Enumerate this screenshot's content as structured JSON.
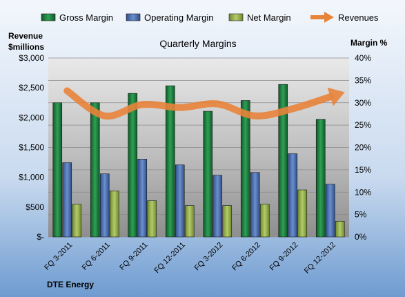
{
  "chart_data": {
    "type": "bar",
    "title": "Quarterly Margins",
    "company": "DTE Energy",
    "categories": [
      "FQ 3-2011",
      "FQ 6-2011",
      "FQ 9-2011",
      "FQ 12-2011",
      "FQ 3-2012",
      "FQ 6-2012",
      "FQ 9-2012",
      "FQ 12-2012"
    ],
    "y_left": {
      "label_line1": "Revenue",
      "label_line2": "$millions",
      "min": 0,
      "max": 3000,
      "step": 500,
      "tick_labels": [
        "$-",
        "$500",
        "$1,000",
        "$1,500",
        "$2,000",
        "$2,500",
        "$3,000"
      ]
    },
    "y_right": {
      "label": "Margin %",
      "min": 0,
      "max": 40,
      "step": 5,
      "tick_labels": [
        "0%",
        "5%",
        "10%",
        "15%",
        "20%",
        "25%",
        "30%",
        "35%",
        "40%"
      ]
    },
    "series": [
      {
        "name": "Gross Margin",
        "axis": "right",
        "color": "#1e7a3c",
        "values": [
          30.0,
          30.0,
          32.1,
          33.8,
          28.1,
          30.5,
          34.1,
          26.3
        ]
      },
      {
        "name": "Operating Margin",
        "axis": "right",
        "color": "#4a6fae",
        "values": [
          16.6,
          14.1,
          17.4,
          16.1,
          13.8,
          14.4,
          18.6,
          11.8
        ]
      },
      {
        "name": "Net Margin",
        "axis": "right",
        "color": "#93ad4a",
        "values": [
          7.3,
          10.3,
          8.1,
          7.0,
          7.0,
          7.3,
          10.5,
          3.5
        ]
      },
      {
        "name": "Revenues",
        "axis": "left",
        "type": "line",
        "color": "#e8833a",
        "values": [
          2450,
          2030,
          2220,
          2170,
          2230,
          2030,
          2150,
          2350
        ]
      }
    ],
    "legend": [
      "Gross Margin",
      "Operating Margin",
      "Net Margin",
      "Revenues"
    ],
    "grid": true,
    "legend_position": "top"
  }
}
